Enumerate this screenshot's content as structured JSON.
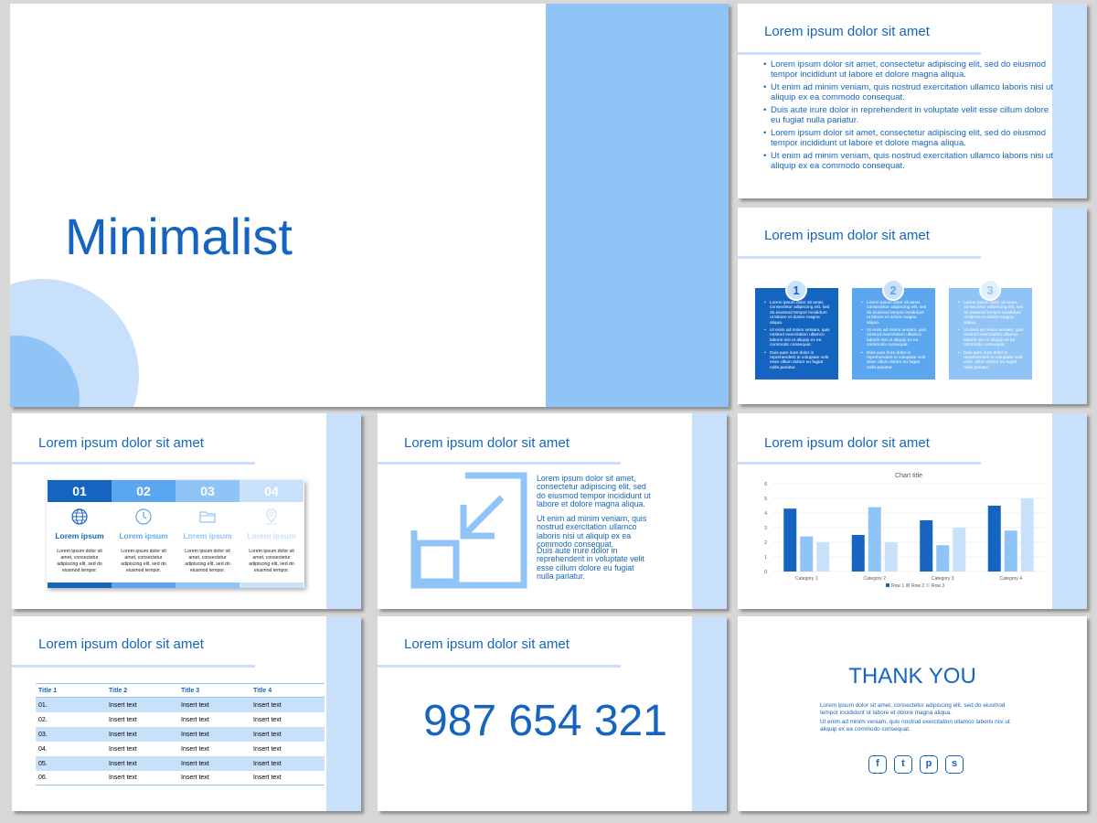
{
  "colors": {
    "dark_blue": "#1565c0",
    "mid_blue": "#5aa7f0",
    "light_blue": "#90c4f7",
    "pale_blue": "#c9e0fb",
    "background": "#d7d7d7"
  },
  "slide1": {
    "title": "Minimalist"
  },
  "slide2": {
    "title": "Lorem ipsum dolor sit amet",
    "bullets": [
      "Lorem ipsum dolor sit amet, consectetur adipiscing elit, sed do eiusmod tempor incididunt ut labore et dolore magna aliqua.",
      "Ut enim ad minim veniam, quis nostrud exercitation ullamco laboris nisi ut aliquip ex ea commodo consequat.",
      "Duis aute irure dolor in reprehenderit in voluptate velit esse cillum dolore eu fugiat nulla pariatur.",
      "Lorem ipsum dolor sit amet, consectetur adipiscing elit, sed do eiusmod tempor incididunt ut labore et dolore magna aliqua.",
      "Ut enim ad minim veniam, quis nostrud exercitation ullamco laboris nisi ut aliquip ex ea commodo consequat."
    ]
  },
  "slide3": {
    "title": "Lorem ipsum dolor sit amet",
    "boxes": [
      {
        "number": "1",
        "items": [
          "Lorem ipsum dolor sit amet, consectetur adipiscing elit, sed do eiusmod tempor incididunt ut labore et dolore magna aliqua.",
          "Ut enim ad minim veniam, quis nostrud exercitation ullamco laboris nisi ut aliquip ex ea commodo consequat.",
          "Duis aute irure dolor in reprehenderit in voluptate velit esse cillum dolore eu fugiat nulla pariatur."
        ]
      },
      {
        "number": "2",
        "items": [
          "Lorem ipsum dolor sit amet, consectetur adipiscing elit, sed do eiusmod tempor incididunt ut labore et dolore magna aliqua.",
          "Ut enim ad minim veniam, quis nostrud exercitation ullamco laboris nisi ut aliquip ex ea commodo consequat.",
          "Duis aute irure dolor in reprehenderit in voluptate velit esse cillum dolore eu fugiat nulla pariatur."
        ]
      },
      {
        "number": "3",
        "items": [
          "Lorem ipsum dolor sit amet, consectetur adipiscing elit, sed do eiusmod tempor incididunt ut labore et dolore magna aliqua.",
          "Ut enim ad minim veniam, quis nostrud exercitation ullamco laboris nisi ut aliquip ex ea commodo consequat.",
          "Duis aute irure dolor in reprehenderit in voluptate velit esse cillum dolore eu fugiat nulla pariatur."
        ]
      }
    ]
  },
  "slide4": {
    "title": "Lorem ipsum dolor sit amet",
    "cards": [
      {
        "number": "01",
        "icon": "globe-icon",
        "label": "Lorem ipsum",
        "text": "Lorem ipsum dolor sit amet, consectetur adipiscing elit, sed do eiusmod tempor."
      },
      {
        "number": "02",
        "icon": "clock-icon",
        "label": "Lorem ipsum",
        "text": "Lorem ipsum dolor sit amet, consectetur adipiscing elit, sed do eiusmod tempor."
      },
      {
        "number": "03",
        "icon": "folder-icon",
        "label": "Lorem ipsum",
        "text": "Lorem ipsum dolor sit amet, consectetur adipiscing elit, sed do eiusmod tempor."
      },
      {
        "number": "04",
        "icon": "location-pin-icon",
        "label": "Lorem ipsum",
        "text": "Lorem ipsum dolor sit amet, consectetur adipiscing elit, sed do eiusmod tempor."
      }
    ]
  },
  "slide5": {
    "title": "Lorem ipsum dolor sit amet",
    "icon": "shrink-arrow-icon",
    "paragraphs": [
      "Lorem ipsum dolor sit amet, consectetur adipiscing elit, sed do eiusmod tempor incididunt ut labore et dolore magna aliqua.",
      "Ut enim ad minim veniam, quis nostrud exercitation ullamco laboris nisi ut aliquip ex ea commodo consequat.",
      "Duis aute irure dolor in reprehenderit in voluptate velit esse cillum dolore eu fugiat nulla pariatur."
    ]
  },
  "slide6": {
    "title": "Lorem ipsum dolor sit amet",
    "chart_data": {
      "type": "bar",
      "title": "Chart title",
      "categories": [
        "Category 1",
        "Category 2",
        "Category 3",
        "Category 4"
      ],
      "series": [
        {
          "name": "Row 1",
          "values": [
            4.3,
            2.5,
            3.5,
            4.5
          ],
          "color": "#1565c0"
        },
        {
          "name": "Row 2",
          "values": [
            2.4,
            4.4,
            1.8,
            2.8
          ],
          "color": "#90c4f7"
        },
        {
          "name": "Row 3",
          "values": [
            2.0,
            2.0,
            3.0,
            5.0
          ],
          "color": "#c9e0fb"
        }
      ],
      "ylim": [
        0,
        6
      ],
      "yticks": [
        "0",
        "1",
        "2",
        "3",
        "4",
        "5",
        "6"
      ],
      "grid": true,
      "legend": "bottom"
    }
  },
  "slide7": {
    "title": "Lorem ipsum dolor sit amet",
    "headers": [
      "Title 1",
      "Title 2",
      "Title 3",
      "Title 4"
    ],
    "rows": [
      [
        "01.",
        "Insert text",
        "Insert text",
        "Insert text"
      ],
      [
        "02.",
        "Insert text",
        "Insert text",
        "Insert text"
      ],
      [
        "03.",
        "Insert text",
        "Insert text",
        "Insert text"
      ],
      [
        "04.",
        "Insert text",
        "Insert text",
        "Insert text"
      ],
      [
        "05.",
        "Insert text",
        "Insert text",
        "Insert text"
      ],
      [
        "06.",
        "Insert text",
        "Insert text",
        "Insert text"
      ]
    ]
  },
  "slide8": {
    "title": "Lorem ipsum dolor sit amet",
    "number": "987 654 321"
  },
  "slide9": {
    "title": "THANK YOU",
    "paragraphs": [
      "Lorem ipsum dolor sit amet, consectetur adipiscing elit, sed do eiusmod tempor incididunt ut labore et dolore magna aliqua.",
      "Ut enim ad minim veniam, quis nostrud exercitation ullamco laboris nisi ut aliquip ex ea commodo consequat."
    ],
    "social": [
      {
        "icon": "facebook-icon",
        "glyph": "f"
      },
      {
        "icon": "twitter-icon",
        "glyph": "t"
      },
      {
        "icon": "pinterest-icon",
        "glyph": "p"
      },
      {
        "icon": "skype-icon",
        "glyph": "s"
      }
    ]
  }
}
